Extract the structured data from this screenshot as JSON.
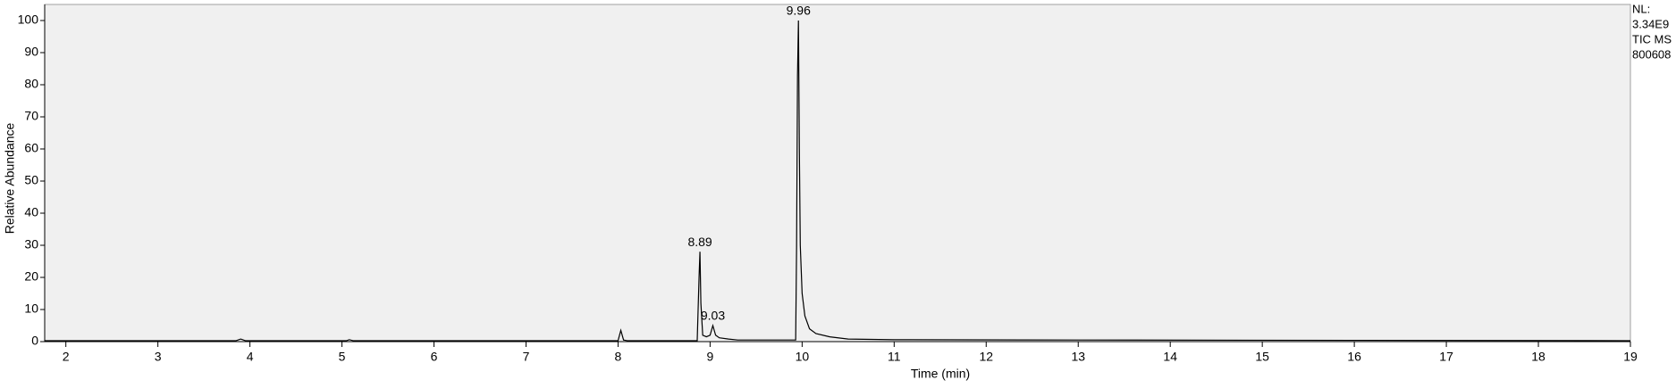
{
  "chart_data": {
    "type": "line",
    "xlabel": "Time (min)",
    "ylabel": "Relative Abundance",
    "info_lines": [
      "NL:",
      "3.34E9",
      "TIC  MS",
      "800608"
    ],
    "color": "#000000",
    "background": "#f0f0f0",
    "xlim": [
      1.77,
      19
    ],
    "ylim": [
      0,
      105
    ],
    "xticks": [
      2,
      3,
      4,
      5,
      6,
      7,
      8,
      9,
      10,
      11,
      12,
      13,
      14,
      15,
      16,
      17,
      18,
      19
    ],
    "yticks": [
      0,
      10,
      20,
      30,
      40,
      50,
      60,
      70,
      80,
      90,
      100
    ],
    "x": [
      1.77,
      3.85,
      3.9,
      3.95,
      5.05,
      5.08,
      5.12,
      8.0,
      8.03,
      8.06,
      8.1,
      8.86,
      8.88,
      8.89,
      8.9,
      8.92,
      8.96,
      9.0,
      9.03,
      9.06,
      9.1,
      9.2,
      9.3,
      9.93,
      9.94,
      9.95,
      9.96,
      9.97,
      9.98,
      10.0,
      10.03,
      10.08,
      10.15,
      10.3,
      10.5,
      11.0,
      13.0,
      16.0,
      19.0
    ],
    "values": [
      0.3,
      0.3,
      0.8,
      0.3,
      0.3,
      0.6,
      0.3,
      0.3,
      3.5,
      0.5,
      0.3,
      0.3,
      20,
      28,
      12,
      2,
      1.5,
      2,
      5,
      2,
      1.2,
      0.8,
      0.5,
      0.5,
      30,
      83,
      100,
      60,
      30,
      15,
      8,
      4,
      2.5,
      1.5,
      0.8,
      0.6,
      0.5,
      0.4,
      0.3
    ],
    "peaks": [
      {
        "x": 9.96,
        "y": 100
      },
      {
        "x": 8.89,
        "y": 28
      },
      {
        "x": 9.03,
        "y": 5
      }
    ]
  }
}
